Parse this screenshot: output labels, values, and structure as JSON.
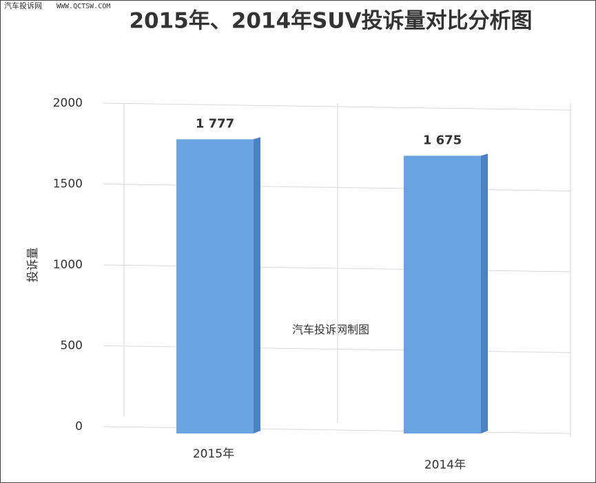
{
  "watermark": {
    "site": "汽车投诉网",
    "url": "WWW.QCTSW.COM"
  },
  "chart_data": {
    "type": "bar",
    "title": "2015年、2014年SUV投诉量对比分析图",
    "y_label": "投诉量",
    "annotation": "汽车投诉网制图",
    "categories": [
      "2015年",
      "2014年"
    ],
    "values": [
      1777,
      1675
    ],
    "value_labels": [
      "1 777",
      "1 675"
    ],
    "color": "#6aa3e4",
    "ylim": [
      0,
      2000
    ],
    "yticks": [
      0,
      500,
      1000,
      1500,
      2000
    ],
    "grid": true
  }
}
